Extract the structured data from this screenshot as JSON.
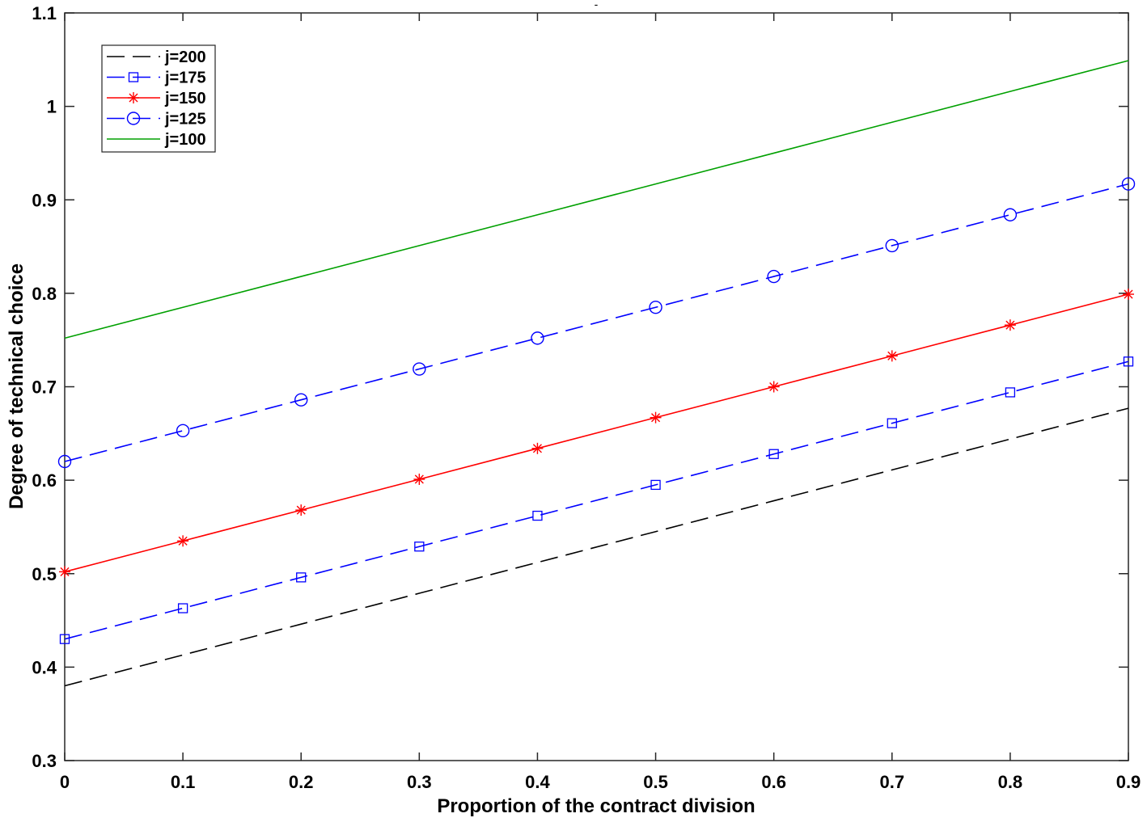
{
  "chart_data": {
    "type": "line",
    "title": "-",
    "xlabel": "Proportion of the contract division",
    "ylabel": "Degree of technical choice",
    "xlim": [
      0,
      0.9
    ],
    "ylim": [
      0.3,
      1.1
    ],
    "xticks": [
      "0",
      "0.1",
      "0.2",
      "0.3",
      "0.4",
      "0.5",
      "0.6",
      "0.7",
      "0.8",
      "0.9"
    ],
    "yticks": [
      "0.3",
      "0.4",
      "0.5",
      "0.6",
      "0.7",
      "0.8",
      "0.9",
      "1",
      "1.1"
    ],
    "grid": false,
    "legend_position": "top-left",
    "x": [
      0,
      0.1,
      0.2,
      0.3,
      0.4,
      0.5,
      0.6,
      0.7,
      0.8,
      0.9
    ],
    "series": [
      {
        "name": "j=200",
        "color": "#000000",
        "line_style": "dashed",
        "marker": "none",
        "values": [
          0.38,
          0.413,
          0.446,
          0.479,
          0.512,
          0.545,
          0.578,
          0.611,
          0.644,
          0.677
        ]
      },
      {
        "name": "j=175",
        "color": "#0000ff",
        "line_style": "dashed",
        "marker": "square",
        "values": [
          0.43,
          0.463,
          0.496,
          0.529,
          0.562,
          0.595,
          0.628,
          0.661,
          0.694,
          0.727
        ]
      },
      {
        "name": "j=150",
        "color": "#ff0000",
        "line_style": "solid",
        "marker": "asterisk",
        "values": [
          0.502,
          0.535,
          0.568,
          0.601,
          0.634,
          0.667,
          0.7,
          0.733,
          0.766,
          0.799
        ]
      },
      {
        "name": "j=125",
        "color": "#0000ff",
        "line_style": "dashed",
        "marker": "circle",
        "values": [
          0.62,
          0.653,
          0.686,
          0.719,
          0.752,
          0.785,
          0.818,
          0.851,
          0.884,
          0.917
        ]
      },
      {
        "name": "j=100",
        "color": "#00a000",
        "line_style": "solid",
        "marker": "none",
        "values": [
          0.752,
          0.785,
          0.818,
          0.851,
          0.884,
          0.917,
          0.95,
          0.983,
          1.016,
          1.049
        ]
      }
    ]
  }
}
